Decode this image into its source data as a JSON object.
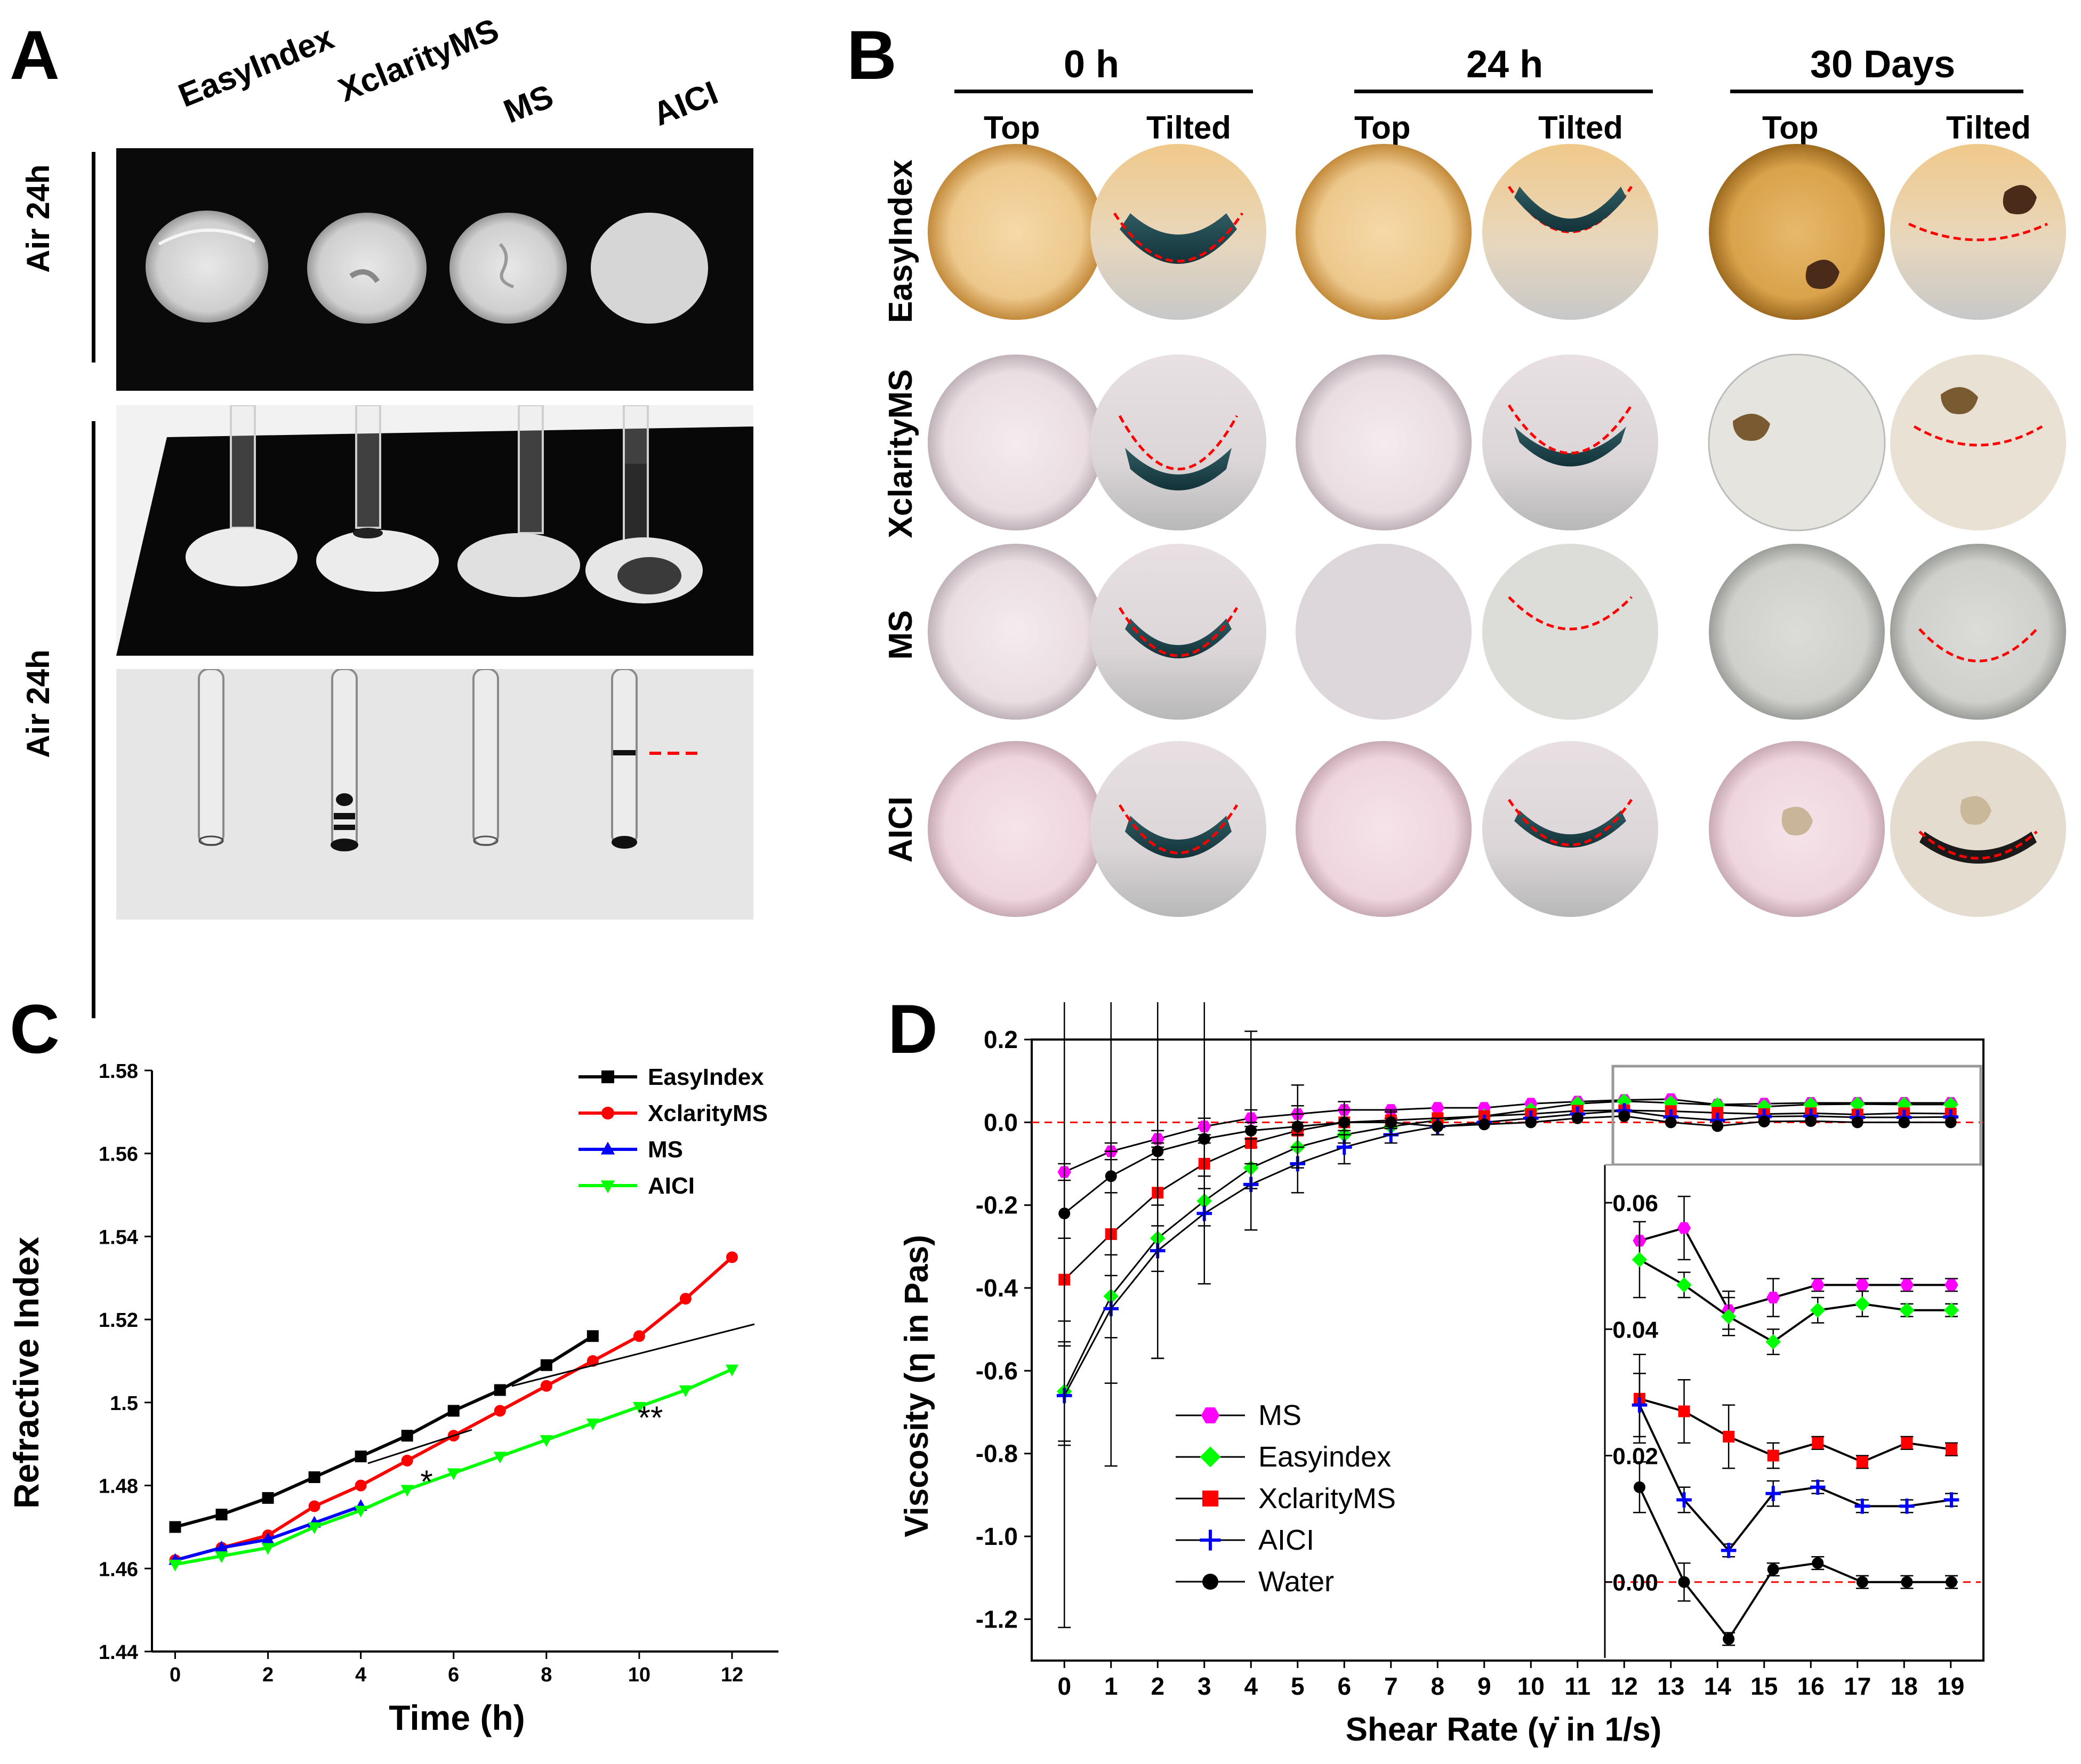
{
  "panel_a": {
    "letter": "A",
    "columns": [
      "EasyIndex",
      "XclarityMS",
      "MS",
      "AICI"
    ],
    "row_labels": [
      "Air 24h",
      "Air 24h"
    ]
  },
  "panel_b": {
    "letter": "B",
    "timepoints": [
      "0 h",
      "24 h",
      "30 Days"
    ],
    "views": [
      "Top",
      "Tilted",
      "Top",
      "Tilted",
      "Top",
      "Tilted"
    ],
    "rows": [
      "EasyIndex",
      "XclarityMS",
      "MS",
      "AICI"
    ]
  },
  "panel_c": {
    "letter": "C",
    "significance": [
      "*",
      "**"
    ]
  },
  "panel_d": {
    "letter": "D"
  },
  "chart_data": [
    {
      "id": "C",
      "type": "line",
      "title": "",
      "xlabel": "Time (h)",
      "ylabel": "Refractive Index",
      "xlim": [
        -0.5,
        13
      ],
      "ylim": [
        1.44,
        1.58
      ],
      "xticks": [
        0,
        2,
        4,
        6,
        8,
        10,
        12
      ],
      "yticks": [
        1.44,
        1.46,
        1.48,
        1.5,
        1.52,
        1.54,
        1.56,
        1.58
      ],
      "ytick_labels": [
        "1.44",
        "1.46",
        "1.48",
        "1.5",
        "1.52",
        "1.54",
        "1.56",
        "1.58"
      ],
      "legend_position": "top-right",
      "series": [
        {
          "name": "EasyIndex",
          "color": "#000000",
          "marker": "square",
          "x": [
            0,
            1,
            2,
            3,
            4,
            5,
            6,
            7,
            8,
            9
          ],
          "values": [
            1.47,
            1.473,
            1.477,
            1.482,
            1.487,
            1.492,
            1.498,
            1.503,
            1.509,
            1.516
          ]
        },
        {
          "name": "XclarityMS",
          "color": "#ff0000",
          "marker": "circle",
          "x": [
            0,
            1,
            2,
            3,
            4,
            5,
            6,
            7,
            8,
            9,
            10,
            11,
            12
          ],
          "values": [
            1.462,
            1.465,
            1.468,
            1.475,
            1.48,
            1.486,
            1.492,
            1.498,
            1.504,
            1.51,
            1.516,
            1.525,
            1.535
          ]
        },
        {
          "name": "MS",
          "color": "#0000ff",
          "marker": "triangle-up",
          "x": [
            0,
            1,
            2,
            3,
            4
          ],
          "values": [
            1.462,
            1.465,
            1.467,
            1.471,
            1.475
          ]
        },
        {
          "name": "AICI",
          "color": "#00ff00",
          "marker": "triangle-down",
          "x": [
            0,
            1,
            2,
            3,
            4,
            5,
            6,
            7,
            8,
            9,
            10,
            11,
            12
          ],
          "values": [
            1.461,
            1.463,
            1.465,
            1.47,
            1.474,
            1.479,
            1.483,
            1.487,
            1.491,
            1.495,
            1.499,
            1.503,
            1.508
          ]
        }
      ]
    },
    {
      "id": "D",
      "type": "line",
      "title": "",
      "xlabel": "Shear Rate (γ̇ in 1/s)",
      "ylabel": "Viscosity (η in Pas)",
      "xlim": [
        -0.7,
        19.7
      ],
      "ylim": [
        -1.3,
        0.2
      ],
      "xticks": [
        0,
        1,
        2,
        3,
        4,
        5,
        6,
        7,
        8,
        9,
        10,
        11,
        12,
        13,
        14,
        15,
        16,
        17,
        18,
        19
      ],
      "yticks": [
        0.2,
        0.0,
        -0.2,
        -0.4,
        -0.6,
        -0.8,
        -1.0,
        -1.2
      ],
      "ytick_labels": [
        "0.2",
        "0.0",
        "-0.2",
        "-0.4",
        "-0.6",
        "-0.8",
        "-1.0",
        "-1.2"
      ],
      "reference_line": 0.0,
      "legend_position": "bottom-left",
      "series": [
        {
          "name": "MS",
          "color": "#ff00ff",
          "marker": "hexagon",
          "values": [
            -0.12,
            -0.07,
            -0.04,
            -0.01,
            0.01,
            0.02,
            0.03,
            0.03,
            0.035,
            0.035,
            0.045,
            0.05,
            0.054,
            0.056,
            0.043,
            0.045,
            0.047,
            0.047,
            0.047,
            0.047
          ],
          "errors": [
            0.02,
            0.02,
            0.02,
            0.02,
            0.02,
            0.02,
            0.01,
            0.01,
            0.005,
            0.005,
            0.005,
            0.005,
            0.003,
            0.005,
            0.003,
            0.003,
            0.001,
            0.001,
            0.001,
            0.001
          ]
        },
        {
          "name": "Easyindex",
          "color": "#00ff00",
          "marker": "diamond",
          "values": [
            -0.65,
            -0.42,
            -0.28,
            -0.19,
            -0.11,
            -0.06,
            -0.03,
            -0.01,
            0.005,
            0.015,
            0.03,
            0.045,
            0.051,
            0.047,
            0.042,
            0.038,
            0.043,
            0.044,
            0.043,
            0.043
          ],
          "errors": [
            0.12,
            0.1,
            0.08,
            0.06,
            0.05,
            0.04,
            0.03,
            0.02,
            0.01,
            0.01,
            0.01,
            0.005,
            0.006,
            0.002,
            0.003,
            0.002,
            0.002,
            0.002,
            0.001,
            0.001
          ]
        },
        {
          "name": "XclarityMS",
          "color": "#ff0000",
          "marker": "square",
          "values": [
            -0.38,
            -0.27,
            -0.17,
            -0.1,
            -0.05,
            -0.02,
            0.0,
            0.005,
            0.01,
            0.015,
            0.02,
            0.028,
            0.029,
            0.027,
            0.023,
            0.02,
            0.022,
            0.019,
            0.022,
            0.021
          ],
          "errors": [
            0.1,
            0.1,
            0.08,
            0.06,
            0.05,
            0.04,
            0.03,
            0.02,
            0.01,
            0.01,
            0.01,
            0.005,
            0.007,
            0.005,
            0.005,
            0.002,
            0.001,
            0.001,
            0.001,
            0.001
          ]
        },
        {
          "name": "AICI",
          "color": "#0000ff",
          "marker": "plus",
          "values": [
            -0.66,
            -0.45,
            -0.31,
            -0.22,
            -0.15,
            -0.1,
            -0.06,
            -0.03,
            -0.01,
            0.0,
            0.01,
            0.02,
            0.028,
            0.013,
            0.005,
            0.014,
            0.015,
            0.012,
            0.012,
            0.013
          ],
          "errors": [
            0.12,
            0.38,
            0.26,
            0.17,
            0.11,
            0.07,
            0.04,
            0.02,
            0.01,
            0.01,
            0.01,
            0.005,
            0.005,
            0.002,
            0.001,
            0.002,
            0.001,
            0.001,
            0.001,
            0.001
          ]
        },
        {
          "name": "Water",
          "color": "#000000",
          "marker": "circle",
          "values": [
            -0.22,
            -0.13,
            -0.07,
            -0.04,
            -0.02,
            -0.01,
            0.0,
            0.0,
            -0.01,
            -0.005,
            0.0,
            0.01,
            0.015,
            0.0,
            -0.009,
            0.002,
            0.003,
            0.0,
            0.0,
            0.0
          ],
          "errors": [
            1.0,
            0.5,
            0.5,
            0.35,
            0.24,
            0.1,
            0.05,
            0.03,
            0.02,
            0.01,
            0.01,
            0.005,
            0.004,
            0.003,
            0.001,
            0.001,
            0.001,
            0.001,
            0.001,
            0.001
          ]
        }
      ],
      "inset": {
        "xrange": [
          12,
          19
        ],
        "ylim": [
          -0.012,
          0.066
        ],
        "yticks": [
          0.0,
          0.02,
          0.04,
          0.06
        ],
        "ytick_labels": [
          "0.00",
          "0.02",
          "0.04",
          "0.06"
        ]
      }
    }
  ]
}
